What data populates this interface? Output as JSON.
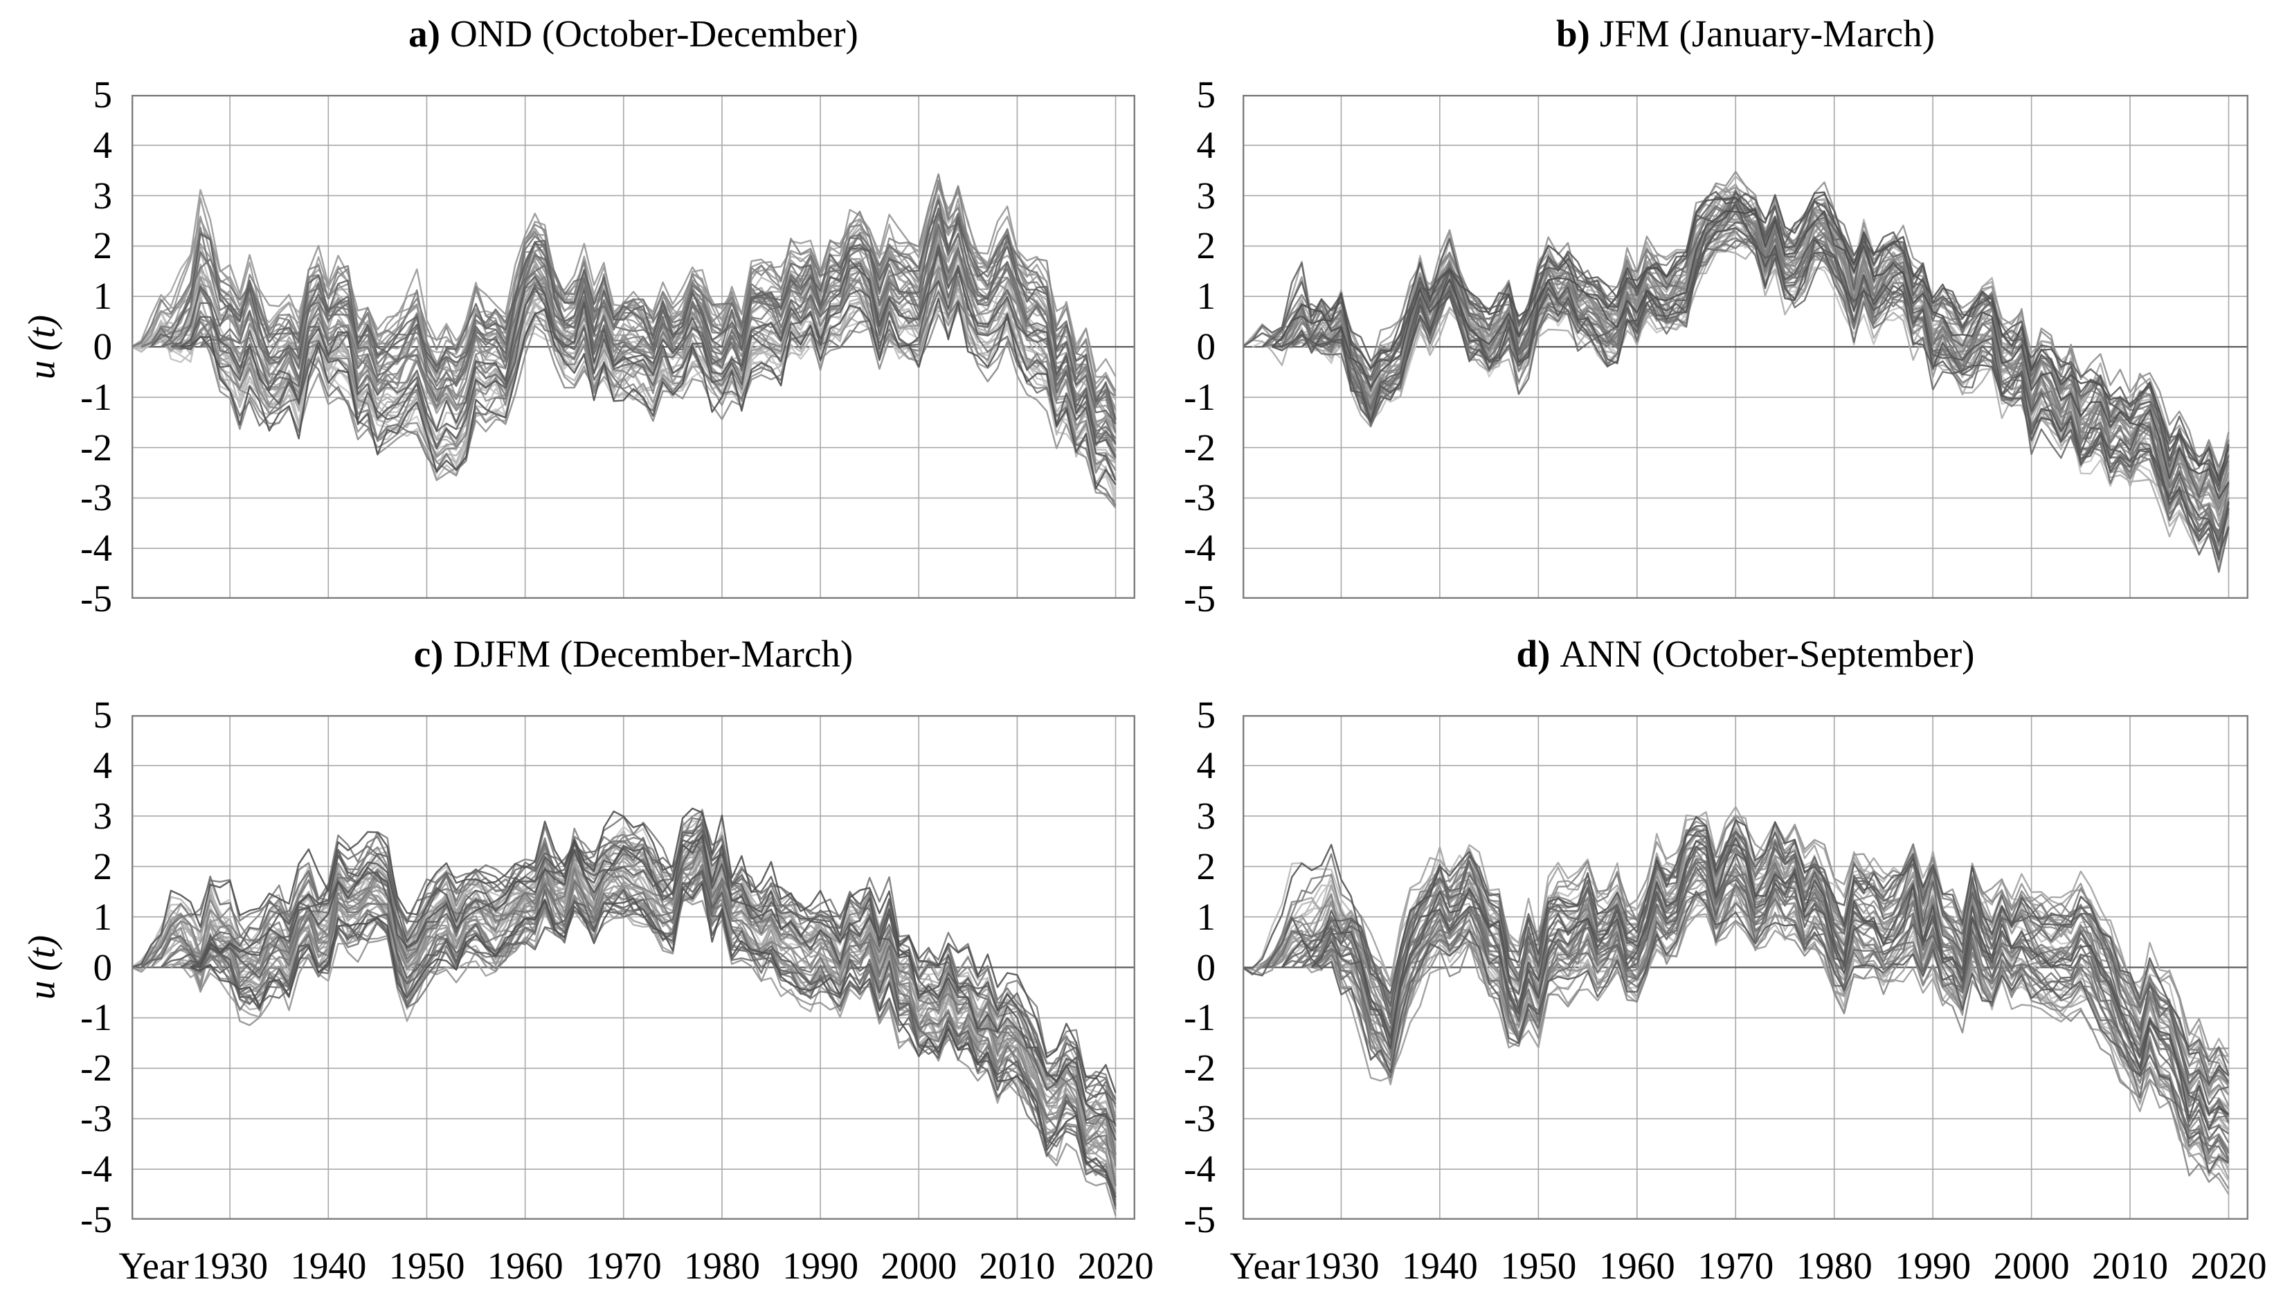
{
  "ylabel": "u (t)",
  "xlabel_prefix": "Year",
  "panels": [
    {
      "tag": "a)",
      "title": "OND (October-December)"
    },
    {
      "tag": "b)",
      "title": "JFM (January-March)"
    },
    {
      "tag": "c)",
      "title": "DJFM (December-March)"
    },
    {
      "tag": "d)",
      "title": "ANN (October-September)"
    }
  ],
  "style": {
    "grid_color": "#a8a8a8",
    "zero_line_color": "#5a5a5a",
    "frame_color": "#7d7d7d",
    "line_gray_darkest": "#484848",
    "line_gray_lightest": "#c8c8c8",
    "text_color": "#000000",
    "background": "#ffffff"
  },
  "chart_data": [
    {
      "type": "line",
      "panel_tag": "a)",
      "season": "OND (October-December)",
      "ylabel": "u (t)",
      "xlabel": "Year",
      "x_range": [
        1920,
        2022
      ],
      "y_range": [
        -5,
        5
      ],
      "x_ticks": [
        1930,
        1940,
        1950,
        1960,
        1970,
        1980,
        1990,
        2000,
        2010,
        2020
      ],
      "y_ticks": [
        5,
        4,
        3,
        2,
        1,
        0,
        -1,
        -2,
        -3,
        -4,
        -5
      ],
      "grid": true,
      "legend": "none",
      "ensemble": {
        "n_members": 55,
        "start_years": [
          1920,
          1927
        ],
        "end_year": 2020,
        "anchor_years": [
          1921,
          1924,
          1927,
          1930,
          1933,
          1936,
          1939,
          1942,
          1945,
          1948,
          1951,
          1954,
          1957,
          1960,
          1963,
          1966,
          1969,
          1972,
          1975,
          1978,
          1981,
          1984,
          1987,
          1990,
          1993,
          1996,
          1999,
          2002,
          2005,
          2008,
          2011,
          2014,
          2017,
          2020
        ],
        "median": [
          0.1,
          0.9,
          1.6,
          0.3,
          -0.4,
          -0.2,
          0.1,
          -0.4,
          -0.6,
          -0.9,
          -0.9,
          -1.0,
          -0.2,
          0.6,
          1.0,
          0.6,
          0.2,
          -0.1,
          0.0,
          0.3,
          0.0,
          0.2,
          0.4,
          0.7,
          0.9,
          1.1,
          1.2,
          1.4,
          1.3,
          1.0,
          0.4,
          -0.5,
          -1.5,
          -2.3
        ],
        "spread": [
          0.3,
          0.8,
          1.1,
          1.2,
          1.1,
          1.0,
          1.0,
          1.1,
          1.1,
          1.2,
          1.3,
          1.3,
          1.0,
          0.9,
          0.8,
          0.9,
          0.9,
          0.9,
          0.9,
          0.9,
          0.9,
          0.9,
          0.9,
          0.9,
          0.9,
          1.0,
          1.1,
          1.1,
          1.1,
          1.1,
          1.1,
          1.1,
          1.0,
          1.0
        ]
      }
    },
    {
      "type": "line",
      "panel_tag": "b)",
      "season": "JFM (January-March)",
      "ylabel": "u (t)",
      "xlabel": "Year",
      "x_range": [
        1920,
        2022
      ],
      "y_range": [
        -5,
        5
      ],
      "x_ticks": [
        1930,
        1940,
        1950,
        1960,
        1970,
        1980,
        1990,
        2000,
        2010,
        2020
      ],
      "y_ticks": [
        5,
        4,
        3,
        2,
        1,
        0,
        -1,
        -2,
        -3,
        -4,
        -5
      ],
      "grid": true,
      "legend": "none",
      "ensemble": {
        "n_members": 55,
        "start_years": [
          1920,
          1927
        ],
        "end_year": 2020,
        "anchor_years": [
          1921,
          1924,
          1927,
          1930,
          1933,
          1936,
          1939,
          1942,
          1945,
          1948,
          1951,
          1954,
          1957,
          1960,
          1963,
          1966,
          1969,
          1972,
          1975,
          1978,
          1981,
          1984,
          1987,
          1990,
          1993,
          1996,
          1999,
          2002,
          2005,
          2008,
          2011,
          2014,
          2017,
          2020
        ],
        "median": [
          0.4,
          0.8,
          0.6,
          0.4,
          -0.9,
          0.0,
          0.7,
          1.1,
          0.4,
          0.3,
          0.7,
          1.0,
          0.6,
          0.9,
          1.2,
          1.7,
          2.0,
          2.2,
          2.1,
          2.3,
          1.7,
          1.2,
          1.0,
          0.6,
          0.1,
          -0.3,
          -0.7,
          -1.0,
          -1.4,
          -1.7,
          -2.0,
          -2.3,
          -2.6,
          -3.1
        ],
        "spread": [
          0.3,
          0.5,
          0.5,
          0.5,
          0.6,
          0.6,
          0.5,
          0.5,
          0.6,
          0.6,
          0.6,
          0.6,
          0.6,
          0.6,
          0.6,
          0.6,
          0.5,
          0.5,
          0.6,
          0.6,
          0.7,
          0.7,
          0.7,
          0.7,
          0.7,
          0.8,
          0.8,
          0.8,
          0.8,
          0.8,
          0.8,
          0.8,
          0.8,
          0.9
        ]
      }
    },
    {
      "type": "line",
      "panel_tag": "c)",
      "season": "DJFM (December-March)",
      "ylabel": "u (t)",
      "xlabel": "Year",
      "x_range": [
        1920,
        2022
      ],
      "y_range": [
        -5,
        5
      ],
      "x_ticks": [
        1930,
        1940,
        1950,
        1960,
        1970,
        1980,
        1990,
        2000,
        2010,
        2020
      ],
      "y_ticks": [
        5,
        4,
        3,
        2,
        1,
        0,
        -1,
        -2,
        -3,
        -4,
        -5
      ],
      "grid": true,
      "legend": "none",
      "ensemble": {
        "n_members": 55,
        "start_years": [
          1920,
          1927
        ],
        "end_year": 2020,
        "anchor_years": [
          1921,
          1924,
          1927,
          1930,
          1933,
          1936,
          1939,
          1942,
          1945,
          1948,
          1951,
          1954,
          1957,
          1960,
          1963,
          1966,
          1969,
          1972,
          1975,
          1978,
          1981,
          1984,
          1987,
          1990,
          1993,
          1996,
          1999,
          2002,
          2005,
          2008,
          2011,
          2014,
          2017,
          2020
        ],
        "median": [
          0.3,
          1.0,
          0.8,
          0.4,
          -0.4,
          0.3,
          1.0,
          1.4,
          0.9,
          0.5,
          0.7,
          1.0,
          0.9,
          1.3,
          1.7,
          2.0,
          1.7,
          1.6,
          1.8,
          1.9,
          1.3,
          0.9,
          1.0,
          0.7,
          0.4,
          0.1,
          -0.3,
          -0.8,
          -1.3,
          -1.8,
          -2.2,
          -2.6,
          -3.0,
          -3.5
        ],
        "spread": [
          0.3,
          0.6,
          0.7,
          0.8,
          0.8,
          0.8,
          0.8,
          0.8,
          0.8,
          0.8,
          0.8,
          0.8,
          0.8,
          0.7,
          0.7,
          0.7,
          0.8,
          0.8,
          0.7,
          0.7,
          0.8,
          0.8,
          0.8,
          0.8,
          0.8,
          0.9,
          0.9,
          0.9,
          0.9,
          0.9,
          0.9,
          0.9,
          0.9,
          1.0
        ]
      }
    },
    {
      "type": "line",
      "panel_tag": "d)",
      "season": "ANN (October-September)",
      "ylabel": "u (t)",
      "xlabel": "Year",
      "x_range": [
        1920,
        2022
      ],
      "y_range": [
        -5,
        5
      ],
      "x_ticks": [
        1930,
        1940,
        1950,
        1960,
        1970,
        1980,
        1990,
        2000,
        2010,
        2020
      ],
      "y_ticks": [
        5,
        4,
        3,
        2,
        1,
        0,
        -1,
        -2,
        -3,
        -4,
        -5
      ],
      "grid": true,
      "legend": "none",
      "ensemble": {
        "n_members": 55,
        "start_years": [
          1920,
          1927
        ],
        "end_year": 2020,
        "anchor_years": [
          1921,
          1924,
          1927,
          1930,
          1933,
          1936,
          1939,
          1942,
          1945,
          1948,
          1951,
          1954,
          1957,
          1960,
          1963,
          1966,
          1969,
          1972,
          1975,
          1978,
          1981,
          1984,
          1987,
          1990,
          1993,
          1996,
          1999,
          2002,
          2005,
          2008,
          2011,
          2014,
          2017,
          2020
        ],
        "median": [
          0.3,
          1.4,
          1.7,
          0.6,
          -1.3,
          -0.6,
          0.5,
          1.1,
          0.4,
          -0.2,
          0.2,
          0.6,
          0.5,
          0.9,
          1.4,
          1.7,
          1.5,
          1.7,
          1.5,
          1.2,
          0.9,
          0.8,
          1.0,
          0.7,
          0.6,
          0.8,
          0.5,
          0.3,
          0.1,
          -0.4,
          -1.0,
          -1.6,
          -2.3,
          -3.0
        ],
        "spread": [
          0.3,
          0.7,
          0.9,
          1.0,
          1.0,
          1.0,
          0.9,
          0.9,
          1.0,
          1.0,
          1.0,
          1.0,
          0.9,
          0.9,
          0.9,
          0.9,
          0.9,
          0.9,
          0.9,
          1.0,
          1.0,
          1.0,
          1.0,
          1.0,
          1.0,
          1.0,
          1.0,
          1.1,
          1.1,
          1.1,
          1.1,
          1.2,
          1.2,
          1.3
        ]
      }
    }
  ]
}
